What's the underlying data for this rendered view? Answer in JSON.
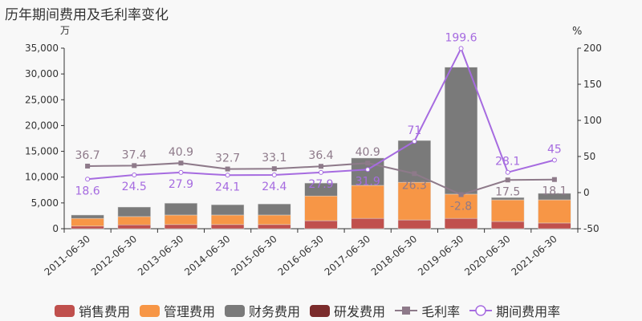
{
  "title": "历年期间费用及毛利率变化",
  "chart_data": {
    "type": "bar",
    "title": "历年期间费用及毛利率变化",
    "ylabel_left": "万",
    "ylabel_right": "%",
    "ylim_left": [
      0,
      35000
    ],
    "ylim_right": [
      -50,
      200
    ],
    "yticks_left": [
      "0",
      "5,000",
      "10,000",
      "15,000",
      "20,000",
      "25,000",
      "30,000",
      "35,000"
    ],
    "yticks_right": [
      "-50",
      "0",
      "50",
      "100",
      "150",
      "200"
    ],
    "categories": [
      "2011-06-30",
      "2012-06-30",
      "2013-06-30",
      "2014-06-30",
      "2015-06-30",
      "2016-06-30",
      "2017-06-30",
      "2018-06-30",
      "2019-06-30",
      "2020-06-30",
      "2021-06-30"
    ],
    "series": [
      {
        "name": "销售费用",
        "type": "bar",
        "color": "#c0504d",
        "values": [
          500,
          750,
          800,
          800,
          800,
          1550,
          2000,
          1700,
          2000,
          1400,
          1100
        ]
      },
      {
        "name": "管理费用",
        "type": "bar",
        "color": "#f79646",
        "values": [
          1500,
          1600,
          1850,
          1850,
          1850,
          4800,
          6400,
          7300,
          4700,
          4200,
          4500
        ]
      },
      {
        "name": "财务费用",
        "type": "bar",
        "color": "#7a7a7a",
        "values": [
          650,
          1850,
          2300,
          2000,
          2150,
          2500,
          5300,
          8100,
          24600,
          450,
          1250
        ]
      },
      {
        "name": "研发费用",
        "type": "bar",
        "color": "#7b2c2c",
        "values": [
          0,
          0,
          0,
          0,
          0,
          0,
          0,
          0,
          0,
          0,
          0
        ]
      },
      {
        "name": "毛利率",
        "type": "line",
        "color": "#8e7a8a",
        "values": [
          36.7,
          37.4,
          40.9,
          32.7,
          33.1,
          36.4,
          40.9,
          26.3,
          -2.8,
          17.5,
          18.1
        ]
      },
      {
        "name": "期间费用率",
        "type": "line",
        "color": "#a66be0",
        "values": [
          18.6,
          24.5,
          27.9,
          24.1,
          24.4,
          27.9,
          31.9,
          71,
          199.6,
          28.1,
          45
        ]
      }
    ]
  }
}
